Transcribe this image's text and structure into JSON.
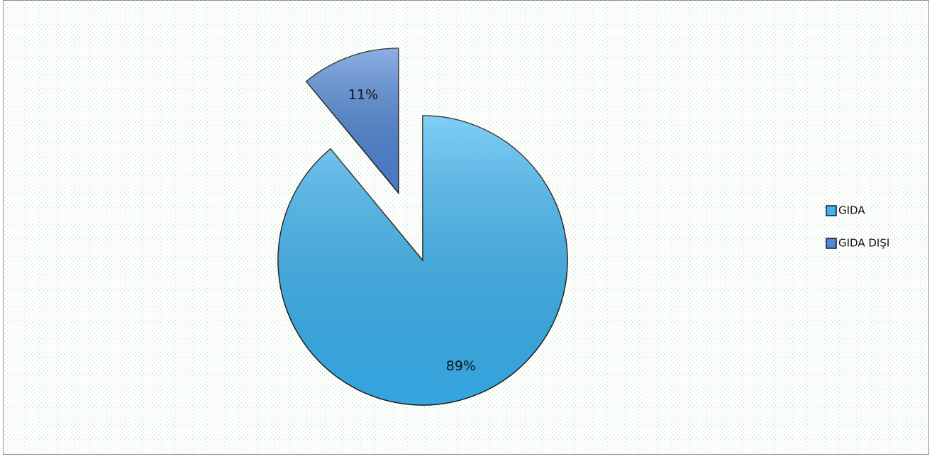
{
  "chart_data": {
    "type": "pie",
    "categories": [
      "GIDA",
      "GIDA DIŞI"
    ],
    "values": [
      89,
      11
    ],
    "value_labels": [
      "89%",
      "11%"
    ],
    "colors": [
      "#3ab4f2",
      "#4f86d6"
    ],
    "legend": "right"
  }
}
